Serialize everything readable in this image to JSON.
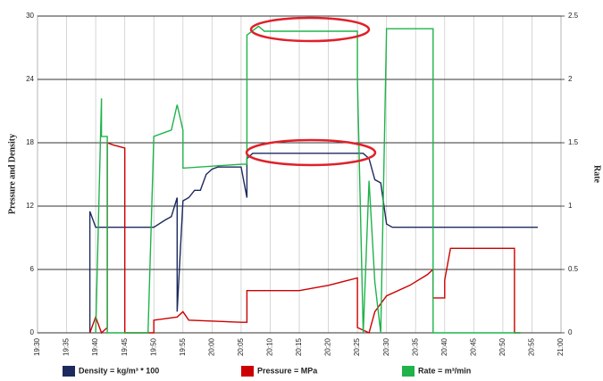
{
  "chart_data": {
    "type": "line",
    "ylabel": "Pressure and Density",
    "y2label": "Rate",
    "xlim": [
      "19:30",
      "21:00"
    ],
    "xticks": [
      "19:30",
      "19:35",
      "19:40",
      "19:45",
      "19:50",
      "19:55",
      "20:00",
      "20:05",
      "20:10",
      "20:15",
      "20:20",
      "20:25",
      "20:30",
      "20:35",
      "20:40",
      "20:45",
      "20:50",
      "20:55",
      "21:00"
    ],
    "ylim": [
      0,
      30
    ],
    "yticks": [
      0,
      6,
      12,
      18,
      24,
      30
    ],
    "y2lim": [
      0,
      2.5
    ],
    "y2ticks": [
      0,
      0.5,
      1,
      1.5,
      2,
      2.5
    ],
    "grid": true,
    "series": [
      {
        "name": "Density = kg/m³ * 100",
        "color": "#1c2a5e",
        "axis": "y",
        "x": [
          "19:39",
          "19:39",
          "19:40",
          "19:50",
          "19:52",
          "19:53",
          "19:54",
          "19:54",
          "19:55",
          "19:56",
          "19:57",
          "19:58",
          "19:59",
          "20:00",
          "20:01",
          "20:05",
          "20:06",
          "20:06",
          "20:07",
          "20:26",
          "20:27",
          "20:28",
          "20:29",
          "20:30",
          "20:31",
          "20:56"
        ],
        "values": [
          0,
          11.5,
          10,
          10,
          10.7,
          11,
          12.8,
          2,
          12.5,
          12.8,
          13.5,
          13.5,
          15,
          15.5,
          15.7,
          15.7,
          12.8,
          16.5,
          17,
          17,
          16.5,
          14.5,
          14.2,
          10.3,
          10,
          10
        ]
      },
      {
        "name": "Pressure = MPa",
        "color": "#cc0000",
        "axis": "y",
        "x": [
          "19:39",
          "19:40",
          "19:41",
          "19:42",
          "19:42",
          "19:43",
          "19:45",
          "19:45",
          "19:50",
          "19:50",
          "19:54",
          "19:55",
          "19:56",
          "20:05",
          "20:06",
          "20:06",
          "20:15",
          "20:20",
          "20:25",
          "20:25",
          "20:27",
          "20:28",
          "20:30",
          "20:34",
          "20:37",
          "20:38",
          "20:38",
          "20:40",
          "20:40",
          "20:41",
          "20:52",
          "20:52",
          "20:53"
        ],
        "values": [
          0,
          1.5,
          0,
          0.5,
          18,
          17.8,
          17.5,
          0,
          0,
          1.2,
          1.5,
          2,
          1.2,
          1,
          1,
          4,
          4,
          4.5,
          5.2,
          0.5,
          0,
          2,
          3.5,
          4.5,
          5.5,
          6,
          3.3,
          3.3,
          5,
          8,
          8,
          0,
          0
        ]
      },
      {
        "name": "Rate = m³/min",
        "color": "#1fb34a",
        "axis": "y2",
        "x": [
          "19:40",
          "19:41",
          "19:41",
          "19:42",
          "19:42",
          "19:49",
          "19:50",
          "19:53",
          "19:54",
          "19:55",
          "19:55",
          "20:05",
          "20:06",
          "20:06",
          "20:08",
          "20:09",
          "20:25",
          "20:25",
          "20:26",
          "20:27",
          "20:28",
          "20:29",
          "20:30",
          "20:38",
          "20:38",
          "20:53"
        ],
        "values": [
          0,
          1.85,
          1.55,
          1.55,
          0,
          0,
          1.55,
          1.6,
          1.8,
          1.6,
          1.3,
          1.33,
          1.33,
          2.35,
          2.42,
          2.38,
          2.38,
          2,
          0,
          1.2,
          0.4,
          0,
          2.4,
          2.4,
          0,
          0
        ]
      }
    ]
  }
}
